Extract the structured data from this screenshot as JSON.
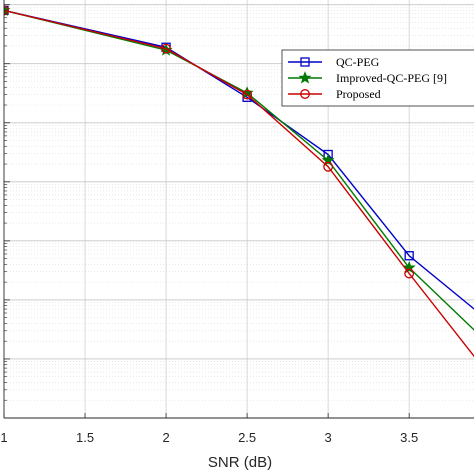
{
  "chart_data": {
    "type": "line",
    "title": "",
    "xlabel": "SNR (dB)",
    "ylabel": "",
    "x_scale": "linear",
    "y_scale": "log",
    "xlim": [
      1,
      3.9
    ],
    "xticks": [
      1,
      1.5,
      2,
      2.5,
      3,
      3.5
    ],
    "xtick_labels": [
      "1",
      "1.5",
      "2",
      "2.5",
      "3",
      "3.5"
    ],
    "ylim": [
      1e-07,
      1.2
    ],
    "grid": true,
    "legend_position": "top-right",
    "series": [
      {
        "name": "QC-PEG",
        "color": "#0000c8",
        "marker": "square",
        "x": [
          1,
          2,
          2.5,
          3,
          3.5,
          4
        ],
        "y": [
          0.8,
          0.19,
          0.027,
          0.0029,
          5.6e-05,
          4.2e-06
        ]
      },
      {
        "name": "Improved-QC-PEG [9]",
        "color": "#007a00",
        "marker": "star",
        "x": [
          1,
          2,
          2.5,
          3,
          3.5,
          4
        ],
        "y": [
          0.8,
          0.17,
          0.032,
          0.0023,
          3.5e-05,
          1.7e-06
        ]
      },
      {
        "name": "Proposed",
        "color": "#cc0000",
        "marker": "circle",
        "x": [
          1,
          2,
          2.5,
          3,
          3.5,
          4
        ],
        "y": [
          0.8,
          0.18,
          0.03,
          0.0018,
          2.8e-05,
          5e-07
        ]
      }
    ]
  }
}
